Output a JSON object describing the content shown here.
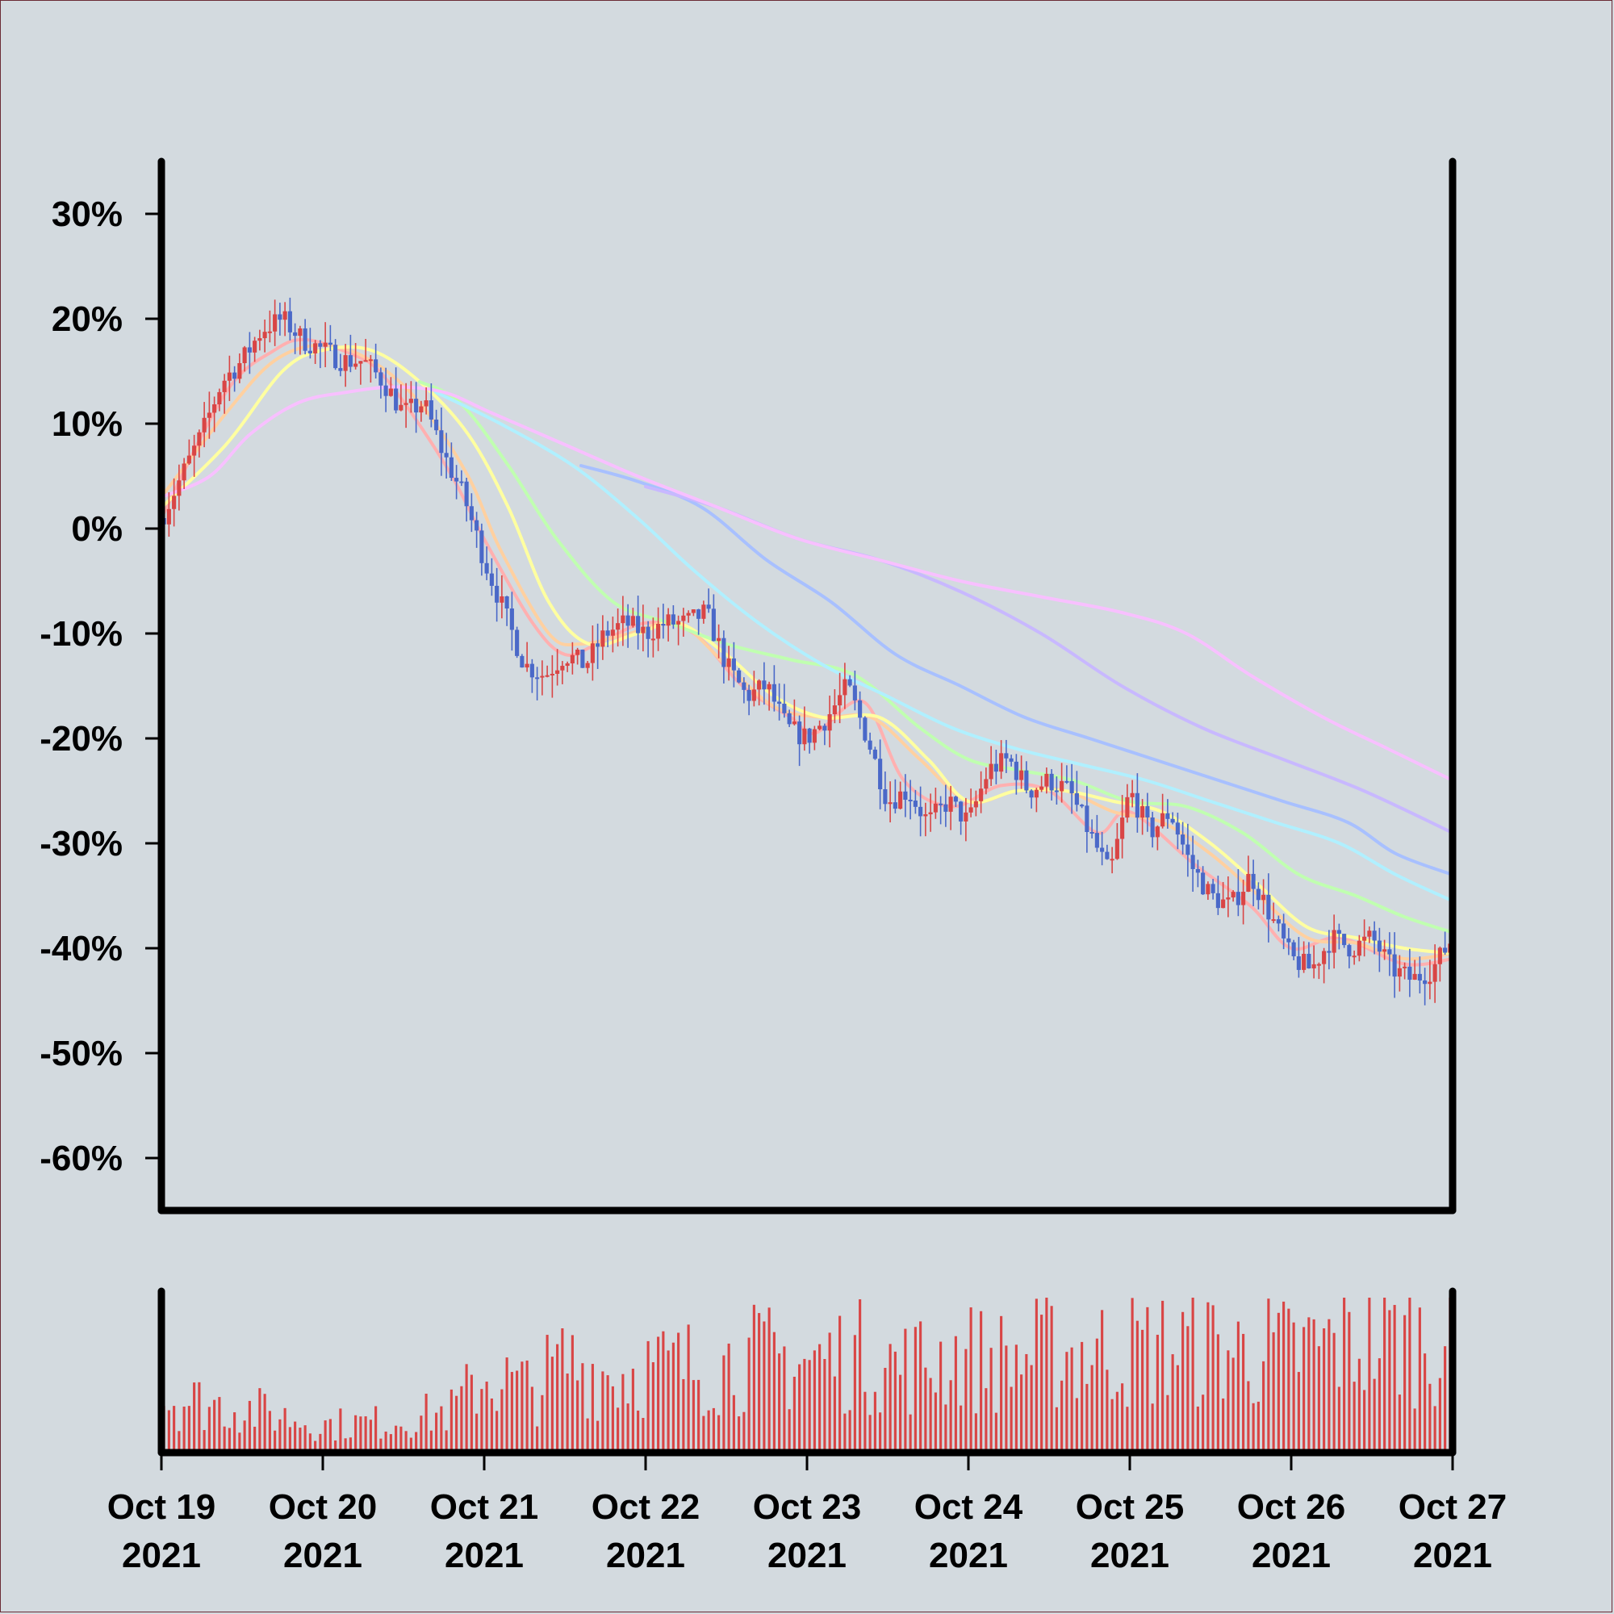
{
  "chart_data": {
    "type": "candlestick",
    "title": "",
    "xlabel": "",
    "ylabel": "",
    "y_tick_labels": [
      "30%",
      "20%",
      "10%",
      "0%",
      "-10%",
      "-20%",
      "-30%",
      "-40%",
      "-50%",
      "-60%"
    ],
    "y_ticks": [
      30,
      20,
      10,
      0,
      -10,
      -20,
      -30,
      -40,
      -50,
      -60
    ],
    "ylim": [
      -65,
      35
    ],
    "x_tick_labels": [
      {
        "line1": "Oct 19",
        "line2": "2021"
      },
      {
        "line1": "Oct 20",
        "line2": "2021"
      },
      {
        "line1": "Oct 21",
        "line2": "2021"
      },
      {
        "line1": "Oct 22",
        "line2": "2021"
      },
      {
        "line1": "Oct 23",
        "line2": "2021"
      },
      {
        "line1": "Oct 24",
        "line2": "2021"
      },
      {
        "line1": "Oct 25",
        "line2": "2021"
      },
      {
        "line1": "Oct 26",
        "line2": "2021"
      },
      {
        "line1": "Oct 27",
        "line2": "2021"
      }
    ],
    "xlim": [
      "2021-10-19",
      "2021-10-27"
    ],
    "close_path": [
      [
        "2021-10-19 00:00",
        1
      ],
      [
        "2021-10-19 03:00",
        5
      ],
      [
        "2021-10-19 06:00",
        9
      ],
      [
        "2021-10-19 09:00",
        14
      ],
      [
        "2021-10-19 12:00",
        16
      ],
      [
        "2021-10-19 15:00",
        19
      ],
      [
        "2021-10-19 18:00",
        20
      ],
      [
        "2021-10-19 21:00",
        18
      ],
      [
        "2021-10-20 00:00",
        17
      ],
      [
        "2021-10-20 03:00",
        16
      ],
      [
        "2021-10-20 06:00",
        16
      ],
      [
        "2021-10-20 09:00",
        14
      ],
      [
        "2021-10-20 12:00",
        11
      ],
      [
        "2021-10-20 15:00",
        12
      ],
      [
        "2021-10-20 18:00",
        7
      ],
      [
        "2021-10-20 21:00",
        3
      ],
      [
        "2021-10-21 00:00",
        -3
      ],
      [
        "2021-10-21 03:00",
        -8
      ],
      [
        "2021-10-21 06:00",
        -13
      ],
      [
        "2021-10-21 09:00",
        -14
      ],
      [
        "2021-10-21 12:00",
        -12
      ],
      [
        "2021-10-21 15:00",
        -13
      ],
      [
        "2021-10-21 18:00",
        -10
      ],
      [
        "2021-10-21 21:00",
        -9
      ],
      [
        "2021-10-22 00:00",
        -10
      ],
      [
        "2021-10-22 03:00",
        -9
      ],
      [
        "2021-10-22 06:00",
        -9
      ],
      [
        "2021-10-22 09:00",
        -8
      ],
      [
        "2021-10-22 12:00",
        -13
      ],
      [
        "2021-10-22 15:00",
        -16
      ],
      [
        "2021-10-22 18:00",
        -15
      ],
      [
        "2021-10-22 21:00",
        -19
      ],
      [
        "2021-10-23 00:00",
        -20
      ],
      [
        "2021-10-23 03:00",
        -18
      ],
      [
        "2021-10-23 06:00",
        -15
      ],
      [
        "2021-10-23 09:00",
        -20
      ],
      [
        "2021-10-23 12:00",
        -26
      ],
      [
        "2021-10-23 15:00",
        -25
      ],
      [
        "2021-10-23 18:00",
        -28
      ],
      [
        "2021-10-23 21:00",
        -26
      ],
      [
        "2021-10-24 00:00",
        -28
      ],
      [
        "2021-10-24 03:00",
        -23
      ],
      [
        "2021-10-24 06:00",
        -22
      ],
      [
        "2021-10-24 09:00",
        -25
      ],
      [
        "2021-10-24 12:00",
        -24
      ],
      [
        "2021-10-24 15:00",
        -25
      ],
      [
        "2021-10-24 18:00",
        -29
      ],
      [
        "2021-10-24 21:00",
        -33
      ],
      [
        "2021-10-25 00:00",
        -25
      ],
      [
        "2021-10-25 03:00",
        -29
      ],
      [
        "2021-10-25 06:00",
        -27
      ],
      [
        "2021-10-25 09:00",
        -32
      ],
      [
        "2021-10-25 12:00",
        -35
      ],
      [
        "2021-10-25 15:00",
        -36
      ],
      [
        "2021-10-25 18:00",
        -33
      ],
      [
        "2021-10-25 21:00",
        -37
      ],
      [
        "2021-10-26 00:00",
        -41
      ],
      [
        "2021-10-26 03:00",
        -42
      ],
      [
        "2021-10-26 06:00",
        -39
      ],
      [
        "2021-10-26 09:00",
        -40
      ],
      [
        "2021-10-26 12:00",
        -39
      ],
      [
        "2021-10-26 15:00",
        -42
      ],
      [
        "2021-10-26 18:00",
        -43
      ],
      [
        "2021-10-26 21:00",
        -42
      ],
      [
        "2021-10-27 00:00",
        -39
      ]
    ],
    "moving_averages": [
      {
        "color": "#ffb0b0",
        "values": [
          [
            0,
            1
          ],
          [
            0.4,
            13
          ],
          [
            0.7,
            17
          ],
          [
            0.9,
            18
          ],
          [
            1.2,
            16.5
          ],
          [
            1.35,
            15
          ],
          [
            1.55,
            11
          ],
          [
            1.8,
            5
          ],
          [
            2.0,
            -1
          ],
          [
            2.3,
            -9
          ],
          [
            2.5,
            -12
          ],
          [
            2.7,
            -11
          ],
          [
            3.0,
            -9
          ],
          [
            3.3,
            -10
          ],
          [
            3.6,
            -15
          ],
          [
            3.9,
            -18
          ],
          [
            4.05,
            -19.5
          ],
          [
            4.35,
            -16.5
          ],
          [
            4.6,
            -24
          ],
          [
            4.9,
            -26.5
          ],
          [
            5.2,
            -24.5
          ],
          [
            5.5,
            -25
          ],
          [
            5.8,
            -29
          ],
          [
            6.0,
            -27
          ],
          [
            6.4,
            -32
          ],
          [
            6.75,
            -36
          ],
          [
            7.0,
            -40
          ],
          [
            7.3,
            -39
          ],
          [
            7.7,
            -41.5
          ],
          [
            8.0,
            -41
          ]
        ]
      },
      {
        "color": "#ffd0a0",
        "values": [
          [
            0,
            3
          ],
          [
            0.4,
            11
          ],
          [
            0.7,
            16
          ],
          [
            1.0,
            17.5
          ],
          [
            1.3,
            16
          ],
          [
            1.6,
            12
          ],
          [
            1.9,
            5
          ],
          [
            2.1,
            -2
          ],
          [
            2.4,
            -10
          ],
          [
            2.6,
            -11
          ],
          [
            2.9,
            -10
          ],
          [
            3.2,
            -9
          ],
          [
            3.5,
            -13
          ],
          [
            3.8,
            -17
          ],
          [
            4.1,
            -18
          ],
          [
            4.4,
            -18
          ],
          [
            4.7,
            -22
          ],
          [
            5.0,
            -26
          ],
          [
            5.3,
            -25
          ],
          [
            5.6,
            -25
          ],
          [
            5.9,
            -27
          ],
          [
            6.2,
            -28
          ],
          [
            6.5,
            -31
          ],
          [
            6.8,
            -35
          ],
          [
            7.1,
            -39
          ],
          [
            7.4,
            -39.5
          ],
          [
            7.7,
            -41
          ],
          [
            8.0,
            -40.5
          ]
        ]
      },
      {
        "color": "#ffffa0",
        "values": [
          [
            0,
            2
          ],
          [
            0.4,
            8
          ],
          [
            0.75,
            15
          ],
          [
            1.0,
            17
          ],
          [
            1.3,
            17
          ],
          [
            1.6,
            14
          ],
          [
            1.9,
            9
          ],
          [
            2.15,
            2
          ],
          [
            2.4,
            -7
          ],
          [
            2.65,
            -11
          ],
          [
            2.95,
            -10
          ],
          [
            3.2,
            -9
          ],
          [
            3.5,
            -12
          ],
          [
            3.8,
            -16
          ],
          [
            4.1,
            -18
          ],
          [
            4.45,
            -18
          ],
          [
            4.75,
            -22
          ],
          [
            5.0,
            -26
          ],
          [
            5.3,
            -25
          ],
          [
            5.6,
            -25
          ],
          [
            5.9,
            -26
          ],
          [
            6.2,
            -27
          ],
          [
            6.5,
            -30
          ],
          [
            6.8,
            -34
          ],
          [
            7.1,
            -38
          ],
          [
            7.4,
            -39
          ],
          [
            7.7,
            -40
          ],
          [
            8.0,
            -40.5
          ]
        ]
      },
      {
        "color": "#c0ffb0",
        "values": [
          [
            1.6,
            14
          ],
          [
            1.85,
            12
          ],
          [
            2.15,
            6
          ],
          [
            2.45,
            -1
          ],
          [
            2.8,
            -7
          ],
          [
            3.15,
            -9
          ],
          [
            3.5,
            -11
          ],
          [
            3.9,
            -12.5
          ],
          [
            4.3,
            -14
          ],
          [
            4.7,
            -19
          ],
          [
            5.0,
            -22
          ],
          [
            5.3,
            -23
          ],
          [
            5.65,
            -24
          ],
          [
            6.0,
            -26
          ],
          [
            6.35,
            -26.5
          ],
          [
            6.7,
            -29
          ],
          [
            7.05,
            -33
          ],
          [
            7.4,
            -35
          ],
          [
            7.7,
            -37
          ],
          [
            8.0,
            -38.5
          ]
        ]
      },
      {
        "color": "#b0f0ff",
        "values": [
          [
            1.7,
            13
          ],
          [
            2.1,
            10
          ],
          [
            2.55,
            6
          ],
          [
            2.95,
            1
          ],
          [
            3.3,
            -4
          ],
          [
            3.7,
            -9
          ],
          [
            4.1,
            -13
          ],
          [
            4.5,
            -16
          ],
          [
            4.9,
            -19
          ],
          [
            5.3,
            -21
          ],
          [
            5.7,
            -22.5
          ],
          [
            6.1,
            -24
          ],
          [
            6.5,
            -26
          ],
          [
            6.9,
            -28
          ],
          [
            7.3,
            -30
          ],
          [
            7.65,
            -33
          ],
          [
            8.0,
            -35.5
          ]
        ]
      },
      {
        "color": "#a8c0ff",
        "values": [
          [
            2.6,
            6
          ],
          [
            2.95,
            4.5
          ],
          [
            3.35,
            2
          ],
          [
            3.75,
            -3
          ],
          [
            4.15,
            -7
          ],
          [
            4.55,
            -12
          ],
          [
            4.95,
            -15
          ],
          [
            5.35,
            -18
          ],
          [
            5.75,
            -20
          ],
          [
            6.15,
            -22
          ],
          [
            6.55,
            -24
          ],
          [
            6.95,
            -26
          ],
          [
            7.35,
            -28
          ],
          [
            7.65,
            -31
          ],
          [
            8.0,
            -33
          ]
        ]
      },
      {
        "color": "#c8b8ff",
        "values": [
          [
            3.0,
            4
          ],
          [
            3.45,
            2
          ],
          [
            3.95,
            -1
          ],
          [
            4.45,
            -3
          ],
          [
            4.95,
            -6
          ],
          [
            5.45,
            -10
          ],
          [
            5.95,
            -15
          ],
          [
            6.45,
            -19
          ],
          [
            6.95,
            -22
          ],
          [
            7.45,
            -25
          ],
          [
            8.0,
            -29
          ]
        ]
      },
      {
        "color": "#f8c0ff",
        "values": [
          [
            0,
            3
          ],
          [
            0.3,
            5
          ],
          [
            0.55,
            9
          ],
          [
            0.85,
            12
          ],
          [
            1.15,
            13
          ],
          [
            1.45,
            13.5
          ],
          [
            1.75,
            13
          ],
          [
            2.05,
            11
          ],
          [
            2.5,
            8
          ],
          [
            2.95,
            5
          ],
          [
            3.45,
            2
          ],
          [
            3.95,
            -1
          ],
          [
            4.45,
            -3
          ],
          [
            4.95,
            -5
          ],
          [
            5.45,
            -6.5
          ],
          [
            5.95,
            -8
          ],
          [
            6.35,
            -10
          ],
          [
            6.75,
            -14
          ],
          [
            7.2,
            -18
          ],
          [
            7.6,
            -21
          ],
          [
            8.0,
            -24
          ]
        ]
      }
    ],
    "volume_ylim": [
      0,
      100
    ],
    "volume_profile": [
      [
        0,
        40
      ],
      [
        0.5,
        32
      ],
      [
        1.0,
        20
      ],
      [
        1.4,
        22
      ],
      [
        1.8,
        30
      ],
      [
        2.0,
        55
      ],
      [
        2.3,
        45
      ],
      [
        2.5,
        65
      ],
      [
        2.8,
        55
      ],
      [
        3.0,
        60
      ],
      [
        3.4,
        62
      ],
      [
        3.7,
        68
      ],
      [
        4.0,
        65
      ],
      [
        4.3,
        70
      ],
      [
        4.6,
        62
      ],
      [
        4.9,
        70
      ],
      [
        5.2,
        66
      ],
      [
        5.5,
        72
      ],
      [
        5.8,
        72
      ],
      [
        6.1,
        74
      ],
      [
        6.4,
        76
      ],
      [
        6.7,
        72
      ],
      [
        7.0,
        72
      ],
      [
        7.3,
        78
      ],
      [
        7.6,
        82
      ],
      [
        8.0,
        80
      ]
    ],
    "colors": {
      "up": "#d94545",
      "down": "#4a68c8",
      "volume": "#d94545",
      "background": "#d3dadf",
      "axis": "#000000"
    }
  }
}
